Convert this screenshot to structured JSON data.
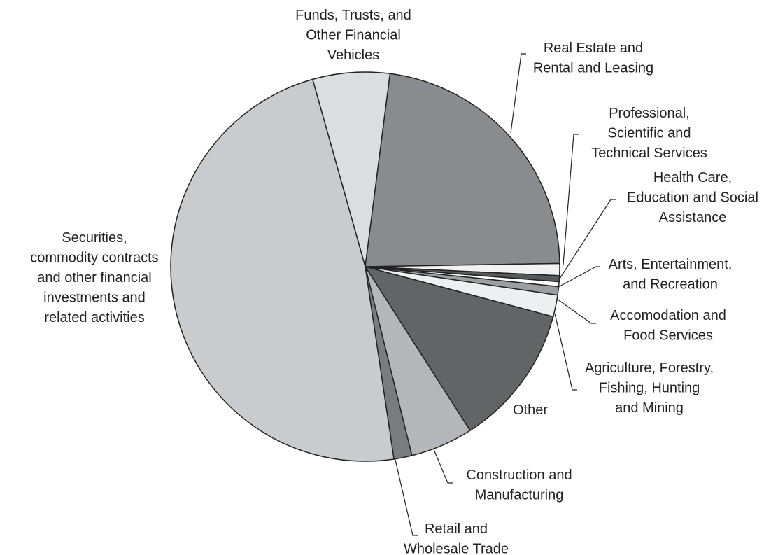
{
  "chart_data": {
    "type": "pie",
    "categories": [
      "Funds, Trusts, and\nOther Financial\nVehicles",
      "Real Estate and\nRental and Leasing",
      "Professional,\nScientific and\nTechnical Services",
      "Health Care,\nEducation and Social\nAssistance",
      "Arts, Entertainment,\nand Recreation",
      "Accomodation and\nFood Services",
      "Agriculture, Forestry,\nFishing, Hunting\nand Mining",
      "Other",
      "Construction and\nManufacturing",
      "Retail and\nWholesale Trade",
      "Securities,\ncommodity contracts\nand other financial\ninvestments and\nrelated activities"
    ],
    "values": [
      6.4,
      22.7,
      1,
      0.5,
      0.4,
      0.7,
      1.8,
      11.8,
      5.2,
      1.5,
      48
    ],
    "colors": [
      "#dcdde0",
      "#8a8b8e",
      "#f2f2f2",
      "#58595b",
      "#ffffff",
      "#9d9ea1",
      "#eeeff0",
      "#636466",
      "#b5b6b9",
      "#7b7c7f",
      "#cacbce"
    ]
  }
}
